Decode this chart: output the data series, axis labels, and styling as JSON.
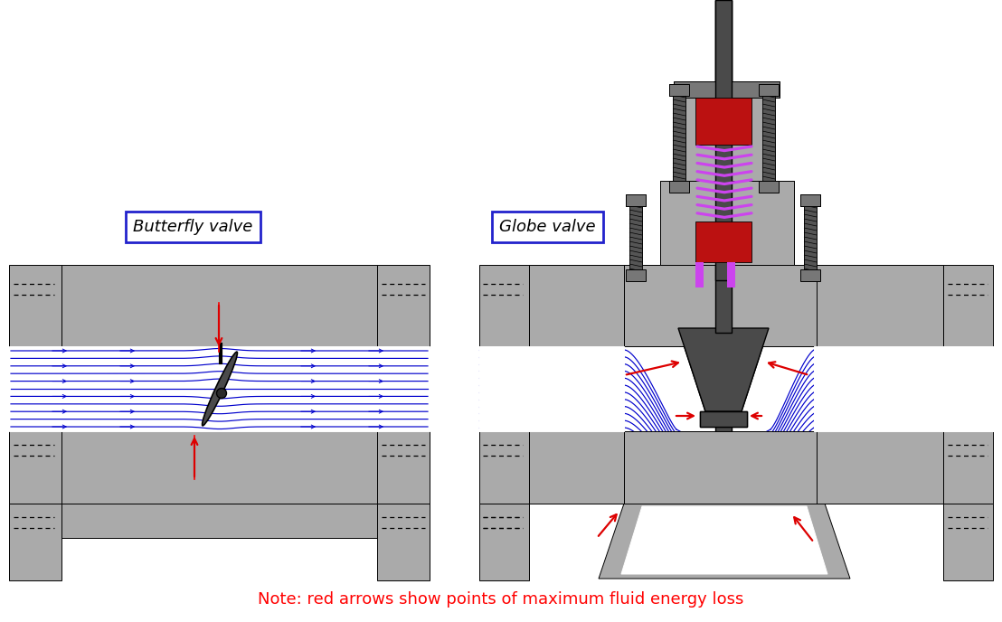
{
  "title_left": "Butterfly valve",
  "title_right": "Globe valve",
  "note_text": "Note: red arrows show points of maximum fluid energy loss",
  "note_color": "#ff0000",
  "title_border": "#2222cc",
  "G": "#aaaaaa",
  "Gd": "#777777",
  "DG": "#4a4a4a",
  "W": "#ffffff",
  "B": "#0000cc",
  "R": "#dd0000",
  "P": "#cc44ee",
  "RD": "#bb1111"
}
